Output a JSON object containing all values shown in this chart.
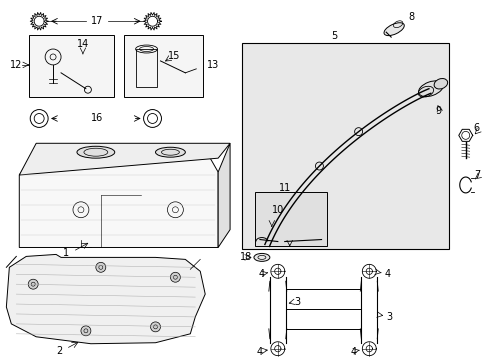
{
  "bg_color": "#ffffff",
  "line_color": "#000000",
  "gray_fill": "#e8e8e8",
  "light_fill": "#f5f5f5",
  "figsize": [
    4.89,
    3.6
  ],
  "dpi": 100
}
